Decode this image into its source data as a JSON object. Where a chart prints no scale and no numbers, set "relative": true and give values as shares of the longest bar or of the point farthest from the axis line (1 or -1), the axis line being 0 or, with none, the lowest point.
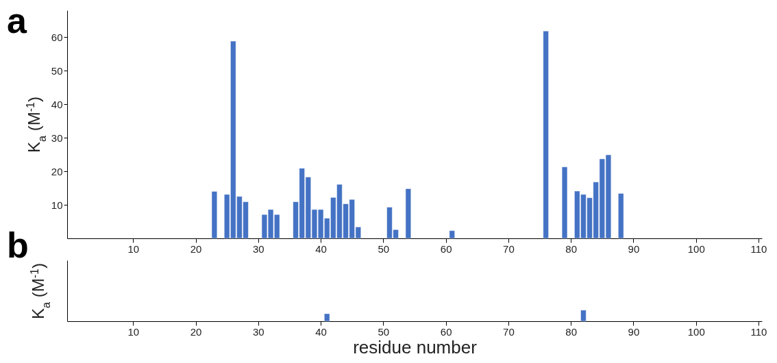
{
  "chart_data": [
    {
      "type": "bar",
      "title": "a",
      "ylabel": "K$_{a}$ (M$^{-1}$)",
      "color": "#4472c4",
      "x": [
        23,
        25,
        26,
        27,
        28,
        31,
        32,
        33,
        36,
        37,
        38,
        39,
        40,
        41,
        42,
        43,
        44,
        45,
        46,
        51,
        52,
        54,
        61,
        76,
        79,
        81,
        82,
        83,
        84,
        85,
        86,
        88
      ],
      "values": [
        14,
        13.1,
        58.8,
        12.5,
        10.9,
        7.1,
        8.6,
        7.1,
        10.9,
        20.9,
        18.3,
        8.6,
        8.6,
        6,
        12.2,
        16.1,
        10.3,
        11.6,
        3.4,
        9.3,
        2.6,
        14.8,
        2.3,
        61.8,
        21.3,
        14.1,
        13.1,
        12.1,
        16.8,
        23.7,
        24.9,
        13.4
      ],
      "xlim": [
        0,
        110
      ],
      "xticks": [
        10,
        20,
        30,
        40,
        50,
        60,
        70,
        80,
        90,
        100,
        110
      ],
      "ylim": [
        0,
        68
      ],
      "yticks": [
        10,
        20,
        30,
        40,
        50,
        60
      ]
    },
    {
      "type": "bar",
      "title": "b",
      "ylabel": "K$_{a}$ (M$^{-1}$)",
      "xlabel": "residue number",
      "color": "#4472c4",
      "relative": true,
      "x": [
        41,
        82
      ],
      "values": [
        0.68,
        1
      ],
      "xlim": [
        0,
        110
      ],
      "xticks": [
        10,
        20,
        30,
        40,
        50,
        60,
        70,
        80,
        90,
        100,
        110
      ]
    }
  ]
}
